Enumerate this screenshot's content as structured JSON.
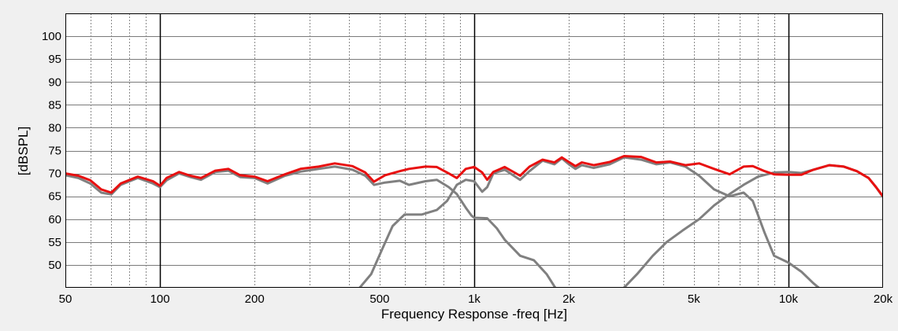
{
  "chart_data": {
    "type": "line",
    "xlabel": "Frequency Response -freq [Hz]",
    "ylabel": "[dBSPL]",
    "x_scale": "log",
    "xlim": [
      50,
      20000
    ],
    "ylim": [
      45,
      105
    ],
    "x_ticks": [
      {
        "value": 50,
        "label": "50"
      },
      {
        "value": 100,
        "label": "100"
      },
      {
        "value": 200,
        "label": "200"
      },
      {
        "value": 500,
        "label": "500"
      },
      {
        "value": 1000,
        "label": "1k"
      },
      {
        "value": 2000,
        "label": "2k"
      },
      {
        "value": 5000,
        "label": "5k"
      },
      {
        "value": 10000,
        "label": "10k"
      },
      {
        "value": 20000,
        "label": "20k"
      }
    ],
    "y_ticks": [
      50,
      55,
      60,
      65,
      70,
      75,
      80,
      85,
      90,
      95,
      100
    ],
    "major_x_gridlines": [
      100,
      1000,
      10000
    ],
    "minor_x_gridlines": [
      60,
      70,
      80,
      90,
      200,
      300,
      400,
      500,
      600,
      700,
      800,
      900,
      2000,
      3000,
      4000,
      5000,
      6000,
      7000,
      8000,
      9000
    ],
    "grid": true,
    "background_color": "#ffffff",
    "frame_color": "#f0f0f0",
    "series": [
      {
        "color": "#808080",
        "points": [
          [
            50,
            69.6
          ],
          [
            55,
            69.0
          ],
          [
            60,
            67.8
          ],
          [
            65,
            65.8
          ],
          [
            70,
            65.4
          ],
          [
            75,
            67.5
          ],
          [
            85,
            69.0
          ],
          [
            95,
            67.8
          ],
          [
            100,
            67.0
          ],
          [
            105,
            68.5
          ],
          [
            115,
            70.0
          ],
          [
            125,
            69.2
          ],
          [
            135,
            68.6
          ],
          [
            150,
            70.3
          ],
          [
            165,
            70.6
          ],
          [
            180,
            69.2
          ],
          [
            200,
            69.0
          ],
          [
            220,
            67.8
          ],
          [
            250,
            69.5
          ],
          [
            280,
            70.4
          ],
          [
            320,
            71.0
          ],
          [
            360,
            71.5
          ],
          [
            410,
            70.8
          ],
          [
            450,
            69.5
          ],
          [
            480,
            67.5
          ],
          [
            520,
            68.0
          ],
          [
            580,
            68.4
          ],
          [
            620,
            67.5
          ],
          [
            700,
            68.3
          ],
          [
            760,
            68.6
          ],
          [
            830,
            67.0
          ],
          [
            880,
            65.5
          ],
          [
            940,
            62.5
          ],
          [
            980,
            60.8
          ],
          [
            1000,
            60.3
          ],
          [
            1100,
            60.2
          ],
          [
            1180,
            58.0
          ],
          [
            1250,
            55.5
          ],
          [
            1400,
            52.0
          ],
          [
            1550,
            51.0
          ],
          [
            1700,
            48.0
          ],
          [
            1850,
            44.0
          ]
        ]
      },
      {
        "color": "#808080",
        "points": [
          [
            420,
            44.0
          ],
          [
            470,
            48.0
          ],
          [
            510,
            53.5
          ],
          [
            550,
            58.5
          ],
          [
            600,
            61.0
          ],
          [
            680,
            61.0
          ],
          [
            760,
            62.0
          ],
          [
            820,
            64.0
          ],
          [
            880,
            67.5
          ],
          [
            940,
            68.6
          ],
          [
            1000,
            68.3
          ],
          [
            1060,
            66.0
          ],
          [
            1100,
            67.0
          ],
          [
            1150,
            70.0
          ],
          [
            1250,
            70.8
          ],
          [
            1400,
            68.6
          ],
          [
            1500,
            70.5
          ],
          [
            1650,
            72.8
          ],
          [
            1800,
            72.0
          ],
          [
            1900,
            73.3
          ],
          [
            2000,
            72.0
          ],
          [
            2100,
            71.0
          ],
          [
            2200,
            71.8
          ],
          [
            2400,
            71.2
          ],
          [
            2700,
            72.0
          ],
          [
            3000,
            73.5
          ],
          [
            3400,
            73.0
          ],
          [
            3800,
            72.0
          ],
          [
            4200,
            72.4
          ],
          [
            4700,
            71.5
          ],
          [
            5200,
            69.5
          ],
          [
            5800,
            66.5
          ],
          [
            6500,
            65.0
          ],
          [
            7200,
            65.8
          ],
          [
            7700,
            64.0
          ],
          [
            8400,
            57.0
          ],
          [
            9000,
            52.0
          ],
          [
            10000,
            50.5
          ],
          [
            11000,
            48.5
          ],
          [
            12000,
            46.0
          ],
          [
            13000,
            44.0
          ]
        ]
      },
      {
        "color": "#808080",
        "points": [
          [
            2900,
            44.0
          ],
          [
            3300,
            48.0
          ],
          [
            3700,
            52.0
          ],
          [
            4100,
            55.0
          ],
          [
            4600,
            57.5
          ],
          [
            5200,
            60.0
          ],
          [
            5800,
            63.0
          ],
          [
            6500,
            65.5
          ],
          [
            7200,
            67.5
          ],
          [
            8000,
            69.3
          ],
          [
            9000,
            70.2
          ],
          [
            10000,
            70.3
          ],
          [
            11000,
            70.1
          ],
          [
            12000,
            70.8
          ],
          [
            13500,
            71.8
          ],
          [
            15000,
            71.5
          ],
          [
            16500,
            70.5
          ],
          [
            18000,
            69.0
          ],
          [
            19000,
            67.0
          ],
          [
            20000,
            64.8
          ]
        ]
      },
      {
        "color": "#e81010",
        "points": [
          [
            50,
            70.0
          ],
          [
            55,
            69.5
          ],
          [
            60,
            68.5
          ],
          [
            65,
            66.5
          ],
          [
            70,
            65.8
          ],
          [
            75,
            67.8
          ],
          [
            85,
            69.3
          ],
          [
            95,
            68.3
          ],
          [
            100,
            67.3
          ],
          [
            105,
            69.0
          ],
          [
            115,
            70.3
          ],
          [
            125,
            69.5
          ],
          [
            135,
            69.0
          ],
          [
            150,
            70.6
          ],
          [
            165,
            71.0
          ],
          [
            180,
            69.6
          ],
          [
            200,
            69.3
          ],
          [
            220,
            68.3
          ],
          [
            250,
            69.8
          ],
          [
            280,
            71.0
          ],
          [
            320,
            71.5
          ],
          [
            360,
            72.2
          ],
          [
            410,
            71.6
          ],
          [
            450,
            70.2
          ],
          [
            480,
            68.2
          ],
          [
            520,
            69.6
          ],
          [
            580,
            70.5
          ],
          [
            620,
            71.0
          ],
          [
            700,
            71.5
          ],
          [
            760,
            71.4
          ],
          [
            830,
            70.0
          ],
          [
            880,
            69.0
          ],
          [
            940,
            71.0
          ],
          [
            1000,
            71.4
          ],
          [
            1060,
            70.2
          ],
          [
            1100,
            68.6
          ],
          [
            1150,
            70.3
          ],
          [
            1250,
            71.4
          ],
          [
            1400,
            69.5
          ],
          [
            1500,
            71.5
          ],
          [
            1650,
            73.0
          ],
          [
            1800,
            72.4
          ],
          [
            1900,
            73.5
          ],
          [
            2000,
            72.5
          ],
          [
            2100,
            71.6
          ],
          [
            2200,
            72.4
          ],
          [
            2400,
            71.8
          ],
          [
            2700,
            72.5
          ],
          [
            3000,
            73.8
          ],
          [
            3400,
            73.6
          ],
          [
            3800,
            72.4
          ],
          [
            4200,
            72.6
          ],
          [
            4700,
            71.8
          ],
          [
            5200,
            72.2
          ],
          [
            5800,
            71.0
          ],
          [
            6500,
            69.8
          ],
          [
            7200,
            71.5
          ],
          [
            7700,
            71.6
          ],
          [
            8400,
            70.5
          ],
          [
            9000,
            69.8
          ],
          [
            10000,
            69.7
          ],
          [
            11000,
            69.7
          ],
          [
            12000,
            70.8
          ],
          [
            13500,
            71.8
          ],
          [
            15000,
            71.5
          ],
          [
            16500,
            70.5
          ],
          [
            18000,
            69.0
          ],
          [
            19000,
            67.0
          ],
          [
            20000,
            65.0
          ]
        ]
      }
    ]
  }
}
